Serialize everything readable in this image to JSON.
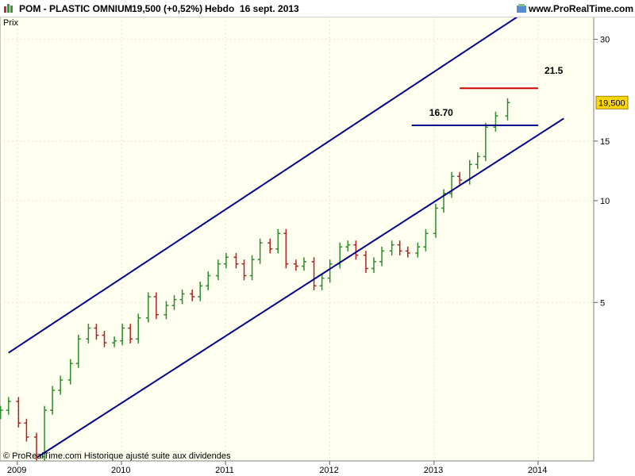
{
  "header": {
    "symbol": "POM - PLASTIC OMNIUM",
    "quote": "19,500 (+0,52%)",
    "period": "Hebdo",
    "date": "16 sept. 2013",
    "site": "www.ProRealTime.com"
  },
  "panel_label": "Prix",
  "footer_note": "© ProRealTime.com  Historique ajusté suite aux dividendes",
  "last_price_label": "19,500",
  "colors": {
    "plot_bg": "#fffff0",
    "up": "#2e8b2e",
    "down": "#b22222",
    "channel": "#00008b",
    "resistance": "#d00000",
    "price_tag": "#ffd700"
  },
  "chart_data": {
    "type": "candlestick",
    "title": "POM - PLASTIC OMNIUM",
    "ylabel": "Prix",
    "yscale": "log",
    "ylim": [
      1.7,
      35
    ],
    "yticks": [
      5,
      10,
      15,
      30
    ],
    "xticks": [
      "2009",
      "2010",
      "2011",
      "2012",
      "2013",
      "2014"
    ],
    "xlim": [
      "2008-11-01",
      "2014-07-15"
    ],
    "series": [
      {
        "values": [
          [
            "2008-11-03",
            2.4
          ],
          [
            "2008-12-01",
            2.55
          ],
          [
            "2009-01-05",
            2.2
          ],
          [
            "2009-02-02",
            2.0
          ],
          [
            "2009-03-09",
            1.75
          ],
          [
            "2009-04-06",
            2.4
          ],
          [
            "2009-05-04",
            2.75
          ],
          [
            "2009-06-01",
            2.95
          ],
          [
            "2009-07-06",
            3.3
          ],
          [
            "2009-08-03",
            3.9
          ],
          [
            "2009-09-07",
            4.2
          ],
          [
            "2009-10-05",
            4.0
          ],
          [
            "2009-11-02",
            3.8
          ],
          [
            "2009-12-07",
            3.85
          ],
          [
            "2010-01-04",
            4.2
          ],
          [
            "2010-02-01",
            3.9
          ],
          [
            "2010-03-01",
            4.5
          ],
          [
            "2010-04-05",
            5.2
          ],
          [
            "2010-05-03",
            4.6
          ],
          [
            "2010-06-07",
            4.9
          ],
          [
            "2010-07-05",
            5.1
          ],
          [
            "2010-08-02",
            5.3
          ],
          [
            "2010-09-06",
            5.2
          ],
          [
            "2010-10-04",
            5.6
          ],
          [
            "2010-11-01",
            6.0
          ],
          [
            "2010-12-06",
            6.5
          ],
          [
            "2011-01-03",
            6.8
          ],
          [
            "2011-02-07",
            6.5
          ],
          [
            "2011-03-07",
            6.0
          ],
          [
            "2011-04-04",
            6.7
          ],
          [
            "2011-05-02",
            7.5
          ],
          [
            "2011-06-06",
            7.2
          ],
          [
            "2011-07-04",
            8.0
          ],
          [
            "2011-08-01",
            6.5
          ],
          [
            "2011-09-05",
            6.4
          ],
          [
            "2011-10-03",
            6.6
          ],
          [
            "2011-11-07",
            5.6
          ],
          [
            "2011-12-05",
            5.9
          ],
          [
            "2012-01-02",
            6.5
          ],
          [
            "2012-02-06",
            7.3
          ],
          [
            "2012-03-05",
            7.4
          ],
          [
            "2012-04-02",
            6.9
          ],
          [
            "2012-05-07",
            6.3
          ],
          [
            "2012-06-04",
            6.6
          ],
          [
            "2012-07-02",
            7.1
          ],
          [
            "2012-08-06",
            7.4
          ],
          [
            "2012-09-03",
            7.1
          ],
          [
            "2012-10-01",
            7.0
          ],
          [
            "2012-11-05",
            7.3
          ],
          [
            "2012-12-03",
            8.0
          ],
          [
            "2013-01-07",
            9.5
          ],
          [
            "2013-02-04",
            10.5
          ],
          [
            "2013-03-04",
            11.8
          ],
          [
            "2013-04-01",
            11.5
          ],
          [
            "2013-05-06",
            12.8
          ],
          [
            "2013-06-03",
            13.5
          ],
          [
            "2013-07-01",
            16.5
          ],
          [
            "2013-08-05",
            17.8
          ],
          [
            "2013-09-16",
            19.5
          ]
        ]
      }
    ],
    "annotations": [
      {
        "type": "channel_upper",
        "from": [
          "2008-12-01",
          3.55
        ],
        "to": [
          "2013-11-01",
          35.5
        ]
      },
      {
        "type": "channel_lower",
        "from": [
          "2009-03-15",
          1.75
        ],
        "to": [
          "2014-04-01",
          17.5
        ]
      },
      {
        "type": "hline",
        "value": 16.7,
        "from": "2012-10-15",
        "to": "2014-01-01",
        "label": "16.70",
        "color": "#00008b"
      },
      {
        "type": "hline",
        "value": 21.5,
        "from": "2013-04-01",
        "to": "2014-01-01",
        "label": "21.5",
        "color": "#d00000"
      }
    ]
  }
}
